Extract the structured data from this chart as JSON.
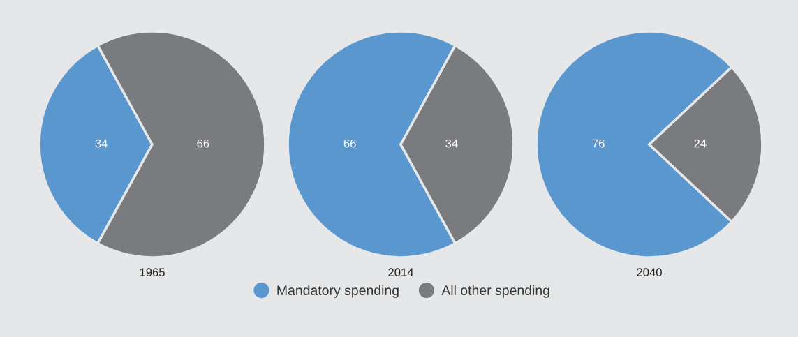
{
  "chart_data": [
    {
      "type": "pie",
      "title": "1965",
      "categories": [
        "Mandatory spending",
        "All other spending"
      ],
      "values": [
        34,
        66
      ],
      "colors": [
        "#5b97cf",
        "#7a7b7e"
      ],
      "data_labels": true,
      "legend": "bottom"
    },
    {
      "type": "pie",
      "title": "2014",
      "categories": [
        null,
        null
      ],
      "values": [
        66,
        34
      ],
      "colors": [
        "#5b97cf",
        "#7a7b7e"
      ],
      "data_labels": true
    },
    {
      "type": "pie",
      "title": "2040",
      "categories": [
        null,
        null
      ],
      "values": [
        76,
        24
      ],
      "colors": [
        "#5b97cf",
        "#7a7b7e"
      ],
      "data_labels": true
    }
  ]
}
